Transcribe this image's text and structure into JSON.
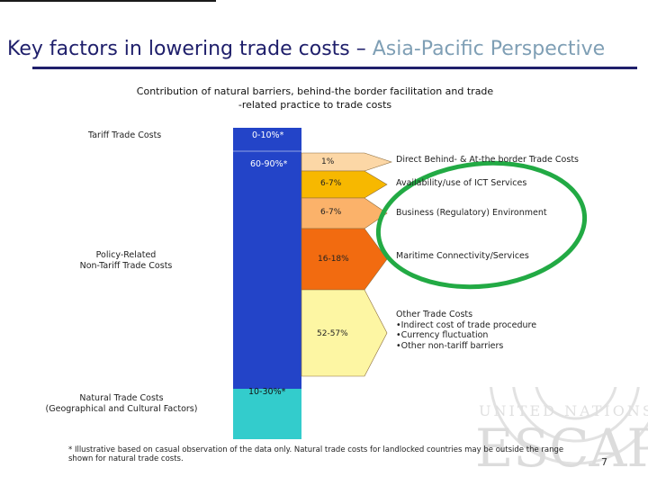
{
  "title": {
    "main": "Key factors in lowering trade costs",
    "dash": " – ",
    "accent": "Asia-Pacific Perspective"
  },
  "subtitle": {
    "line1": "Contribution of natural barriers, behind-the border facilitation and trade",
    "line2": "-related practice to trade costs"
  },
  "left_labels": {
    "tariff": "Tariff Trade Costs",
    "policy_line1": "Policy-Related",
    "policy_line2": "Non-Tariff Trade Costs",
    "natural_line1": "Natural Trade Costs",
    "natural_line2": "(Geographical and Cultural Factors)"
  },
  "column": {
    "tariff_range": "0-10%*",
    "policy_range": "60-90%*",
    "natural_range": "10-30%*"
  },
  "segments": [
    {
      "range": "1%",
      "label": "Direct Behind- & At-the border Trade Costs",
      "color": "#fcd7a6"
    },
    {
      "range": "6-7%",
      "label": "Availability/use of ICT Services",
      "color": "#f7b800"
    },
    {
      "range": "6-7%",
      "label": "Business (Regulatory) Environment",
      "color": "#fbb26a"
    },
    {
      "range": "16-18%",
      "label": "Maritime Connectivity/Services",
      "color": "#f26b10"
    },
    {
      "range": "52-57%",
      "label": "Other Trade Costs",
      "color": "#fdf6a3"
    }
  ],
  "other_items": [
    "•Indirect cost of trade procedure",
    "•Currency fluctuation",
    "•Other non-tariff barriers"
  ],
  "footnote": {
    "line1": "* Illustrative based on casual observation of the data only. Natural trade costs for landlocked countries may be outside the range",
    "line2": "shown for natural trade costs."
  },
  "page_number": "7",
  "watermark": {
    "line1": "UNITED NATIONS",
    "line2": "ESCAP"
  },
  "colors": {
    "column_blue": "#2344c8",
    "natural_teal": "#33cccc",
    "highlight_green": "#22aa44",
    "title_navy": "#1f1f6b",
    "title_accent": "#7f9fb5"
  }
}
